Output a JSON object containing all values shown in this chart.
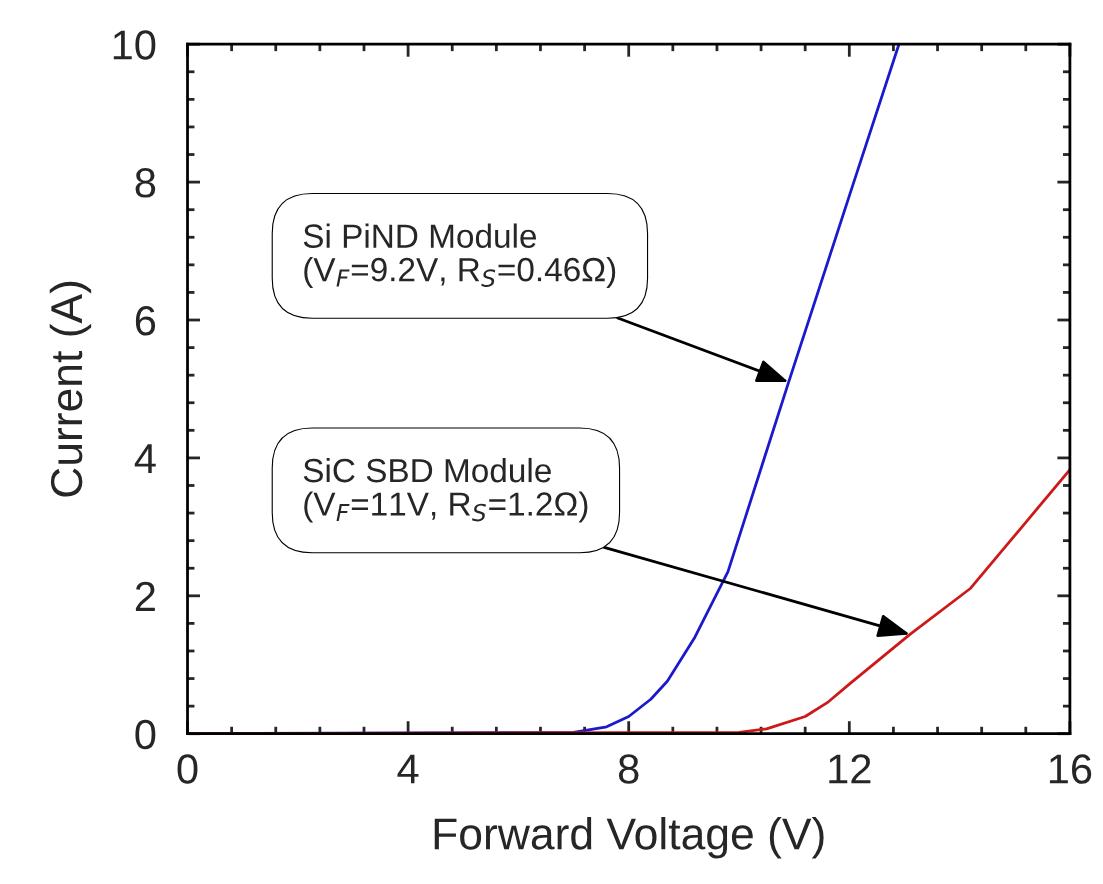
{
  "chart_data": {
    "type": "line",
    "xlabel": "Forward Voltage (V)",
    "ylabel": "Current (A)",
    "xlim": [
      0,
      16
    ],
    "xticks": [
      0,
      4,
      8,
      12,
      16
    ],
    "ylim": [
      0,
      10
    ],
    "yticks": [
      0,
      2,
      4,
      6,
      8,
      10
    ],
    "grid": false,
    "marker": "none",
    "line_style": "solid",
    "series": [
      {
        "color": "#1a1acc",
        "x": [
          0,
          7.0,
          7.6,
          8.0,
          8.4,
          8.7,
          9.2,
          9.8,
          10.9,
          12.0,
          12.9
        ],
        "values": [
          0,
          0.02,
          0.1,
          0.25,
          0.5,
          0.76,
          1.4,
          2.35,
          5.1,
          7.8,
          10
        ]
      },
      {
        "color": "#cc1a1a",
        "x": [
          0,
          10.0,
          10.5,
          11.2,
          11.6,
          12.0,
          13.1,
          14.2,
          16
        ],
        "values": [
          0,
          0.02,
          0.07,
          0.25,
          0.45,
          0.72,
          1.44,
          2.11,
          3.83
        ]
      }
    ],
    "annotations": [
      {
        "text": "Si PiND Module\n(V$_{F}$=9.2V, R$_{S}$=0.46Ω)",
        "x": 10.9,
        "y": 5.1
      },
      {
        "text": "SiC SBD Module\n(V$_{F}$=11V, R$_{S}$=1.2Ω)",
        "x": 13.1,
        "y": 1.44
      }
    ]
  }
}
